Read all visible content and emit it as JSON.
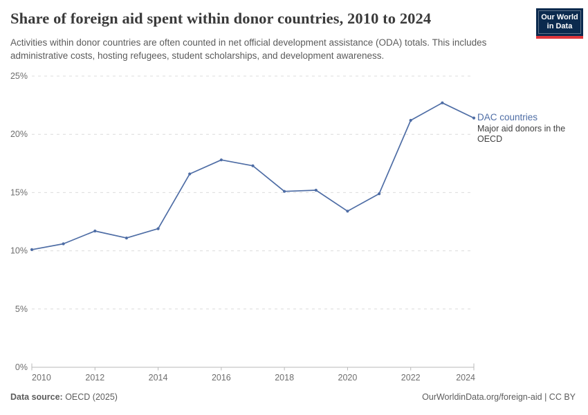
{
  "header": {
    "title": "Share of foreign aid spent within donor countries, 2010 to 2024",
    "subtitle": "Activities within donor countries are often counted in net official development assistance (ODA) totals. This includes administrative costs, hosting refugees, student scholarships, and development awareness.",
    "logo": {
      "line1": "Our World",
      "line2": "in Data"
    }
  },
  "legend": {
    "label": "DAC countries",
    "sublabel": "Major aid donors in the OECD"
  },
  "footer": {
    "source_label": "Data source:",
    "source_value": " OECD (2025)",
    "right": "OurWorldinData.org/foreign-aid | CC BY"
  },
  "chart_data": {
    "type": "line",
    "title": "Share of foreign aid spent within donor countries, 2010 to 2024",
    "x": [
      2010,
      2011,
      2012,
      2013,
      2014,
      2015,
      2016,
      2017,
      2018,
      2019,
      2020,
      2021,
      2022,
      2023,
      2024
    ],
    "series": [
      {
        "name": "DAC countries",
        "annotation": "Major aid donors in the OECD",
        "color": "#4e6da5",
        "values": [
          10.1,
          10.6,
          11.7,
          11.1,
          11.9,
          16.6,
          17.8,
          17.3,
          15.1,
          15.2,
          13.4,
          14.9,
          21.2,
          22.7,
          21.4
        ]
      }
    ],
    "xlabel": "",
    "ylabel": "",
    "ylim": [
      0,
      25
    ],
    "yticks": {
      "values": [
        0,
        5,
        10,
        15,
        20,
        25
      ],
      "labels": [
        "0%",
        "5%",
        "10%",
        "15%",
        "20%",
        "25%"
      ]
    },
    "xticks": [
      2010,
      2012,
      2014,
      2016,
      2018,
      2020,
      2022,
      2024
    ],
    "grid": "horizontal-dashed",
    "legend_position": "right-of-line-end",
    "colors": {
      "gridline": "#dcdcdc",
      "axis": "#b8b8b8",
      "tick_label": "#6e6e6e"
    }
  }
}
